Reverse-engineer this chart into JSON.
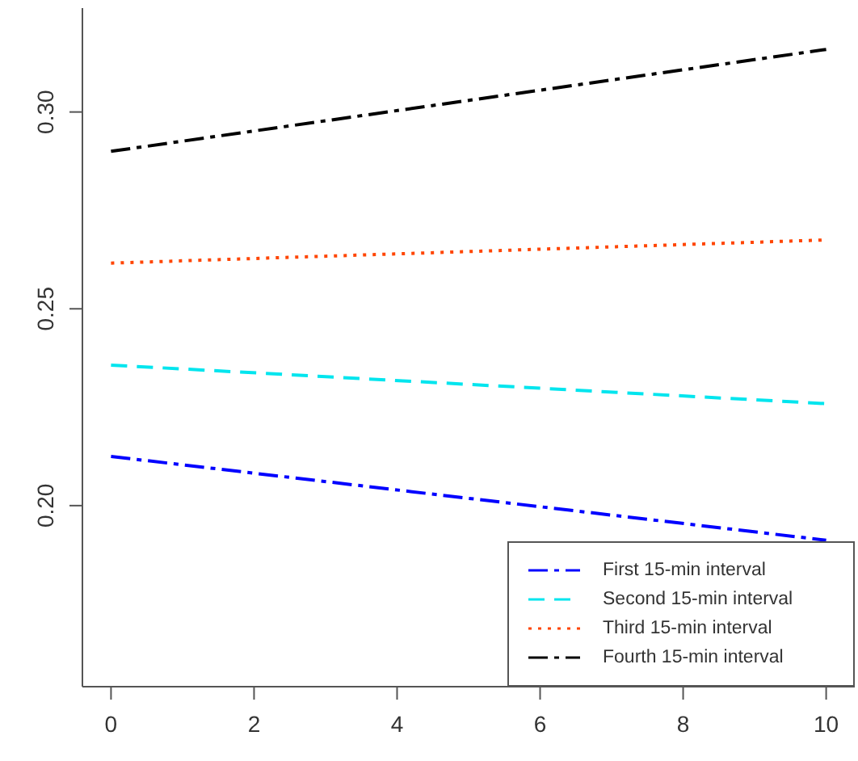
{
  "chart_data": {
    "type": "line",
    "x": [
      0,
      10
    ],
    "series": [
      {
        "name": "First 15-min interval",
        "color": "#0000ff",
        "line_style": "dashdot",
        "values": [
          0.2125,
          0.1912
        ]
      },
      {
        "name": "Second 15-min interval",
        "color": "#00e5ee",
        "line_style": "dashed",
        "values": [
          0.2357,
          0.2259
        ]
      },
      {
        "name": "Third 15-min interval",
        "color": "#ff4500",
        "line_style": "dotted",
        "values": [
          0.2616,
          0.2675
        ]
      },
      {
        "name": "Fourth 15-min interval",
        "color": "#000000",
        "line_style": "dashdot",
        "values": [
          0.29,
          0.3159
        ]
      }
    ],
    "xlim": [
      -0.4,
      10.4
    ],
    "xticks": [
      0,
      2,
      4,
      6,
      8,
      10
    ],
    "ylim": [
      0.154,
      0.3264
    ],
    "yticks": [
      {
        "value": 0.2,
        "label": "0.20"
      },
      {
        "value": 0.25,
        "label": "0.25"
      },
      {
        "value": 0.3,
        "label": "0.30"
      }
    ],
    "grid": false,
    "legend": "bottom right",
    "marker": "none"
  }
}
